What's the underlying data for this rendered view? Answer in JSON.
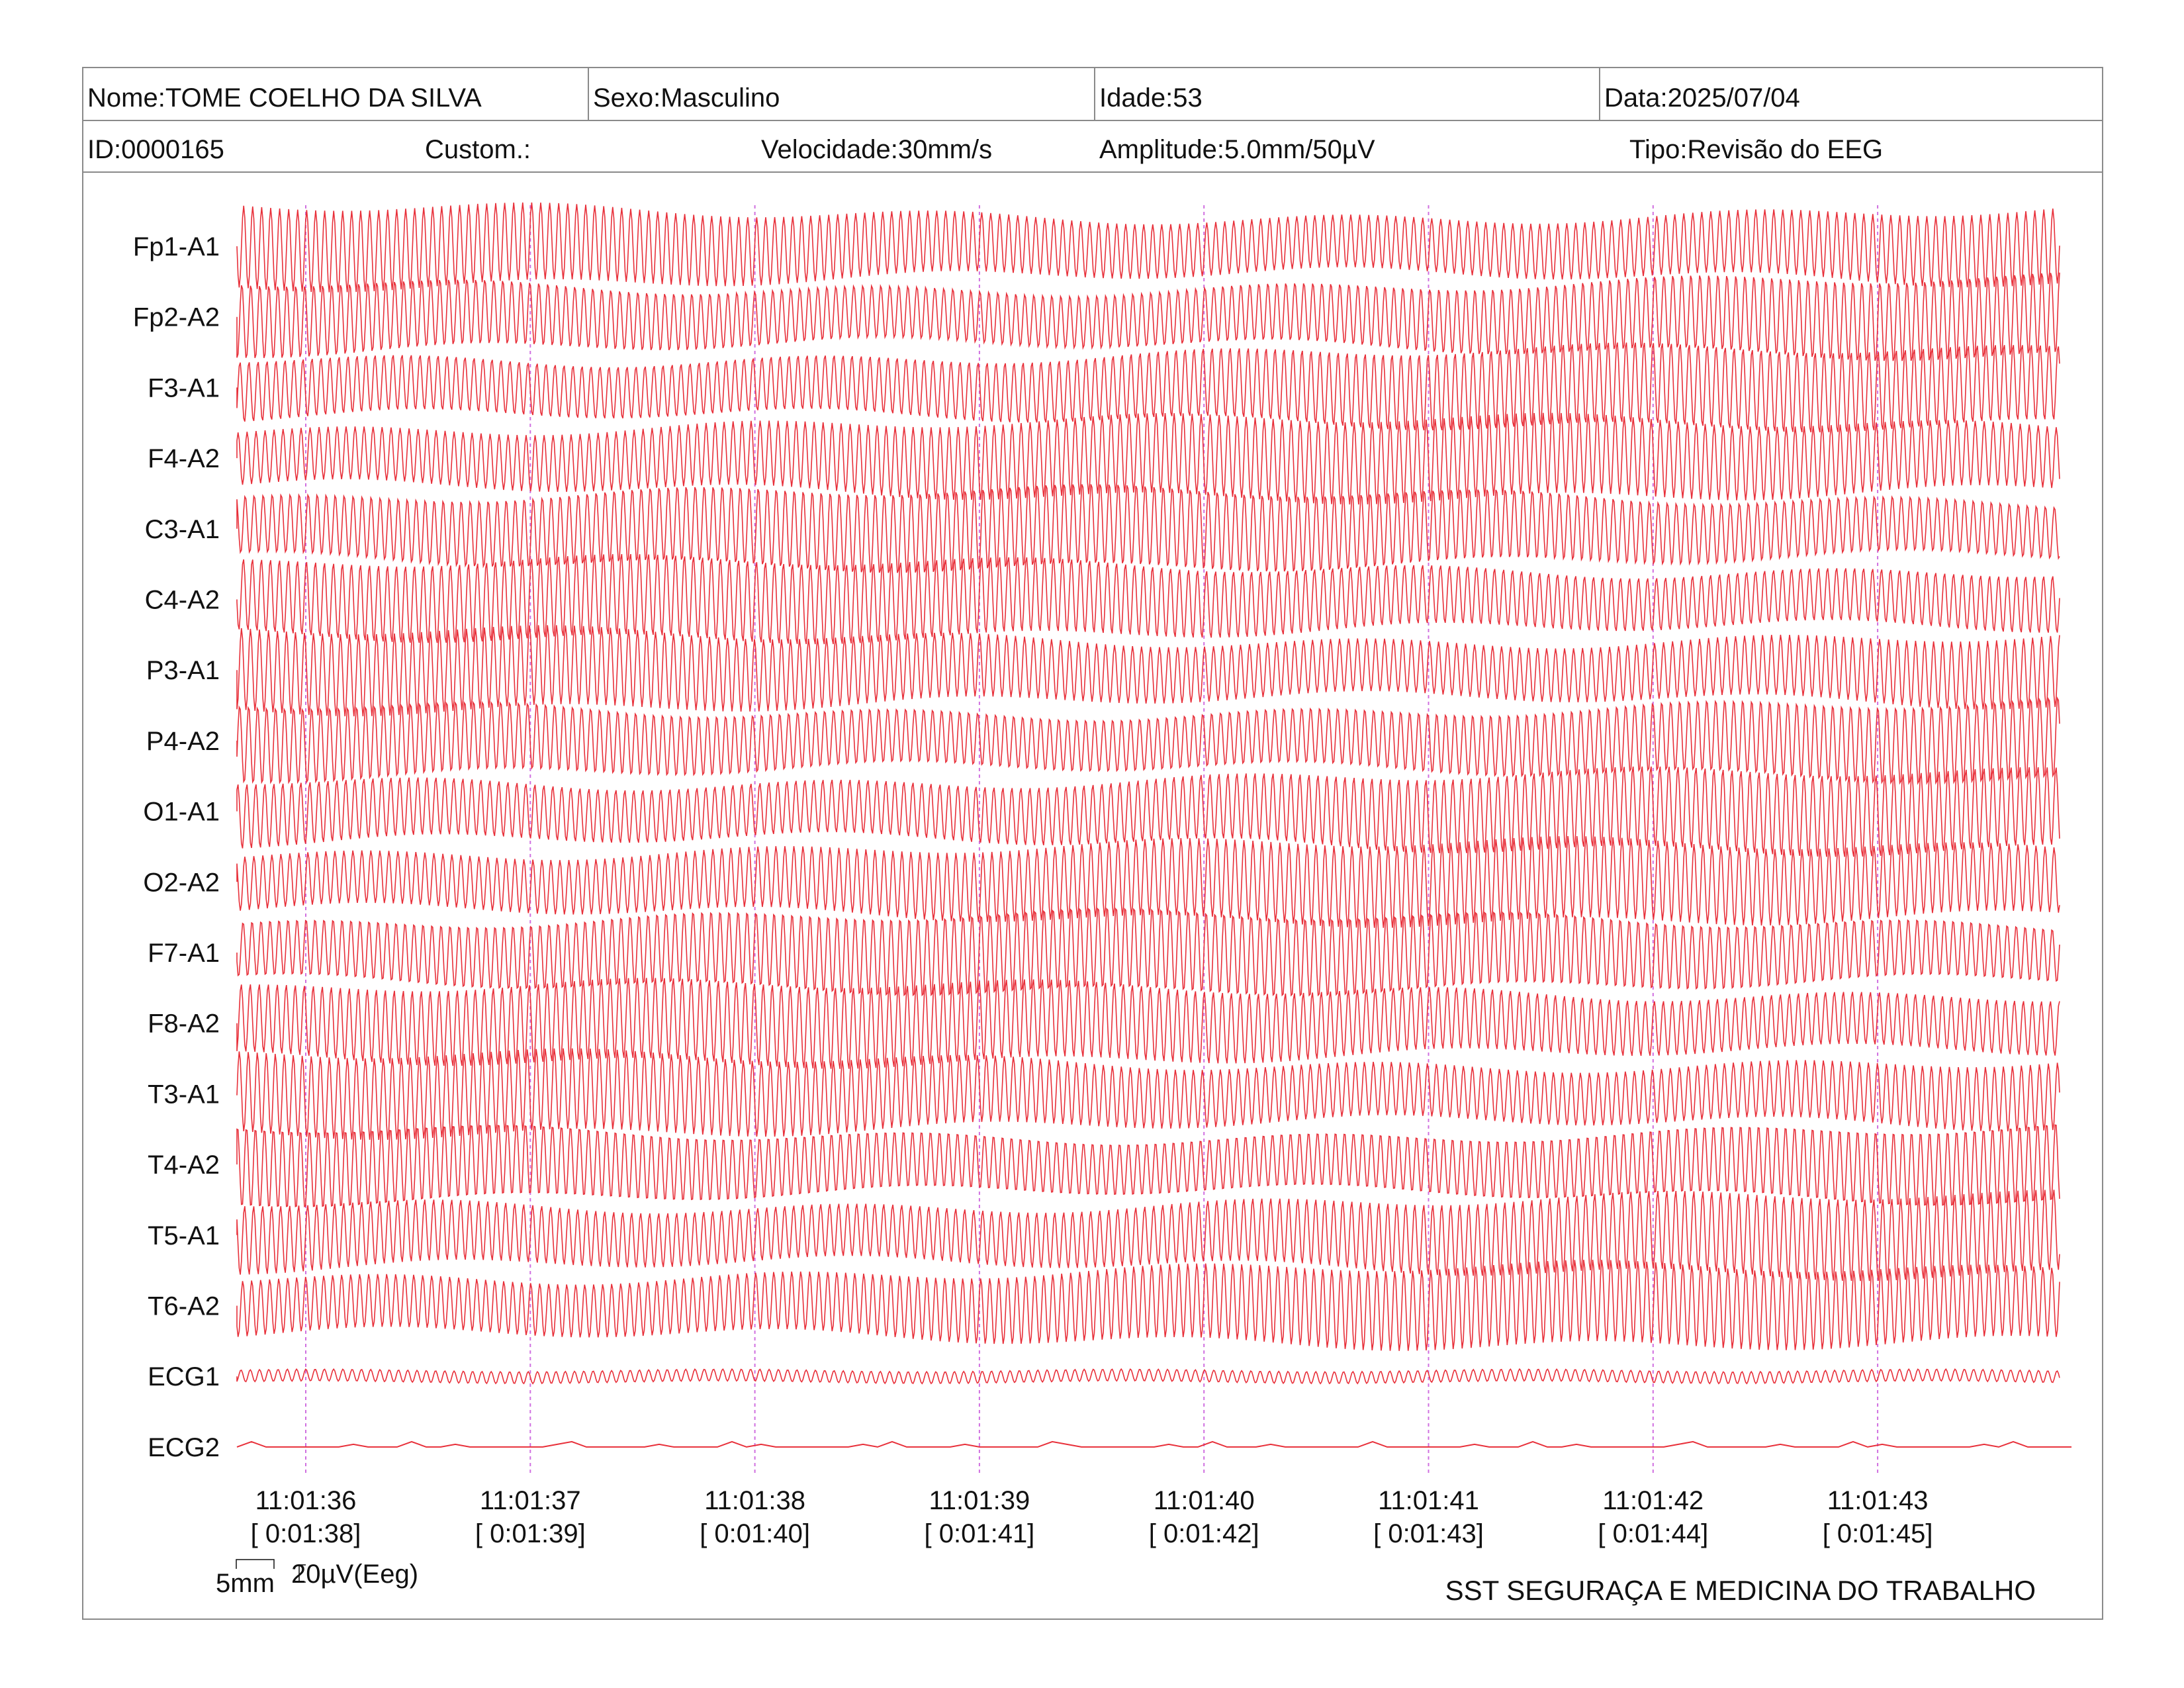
{
  "header": {
    "name": "Nome:TOME COELHO DA SILVA",
    "sex": "Sexo:Masculino",
    "age": "Idade:53",
    "date": "Data:2025/07/04",
    "id": "ID:0000165",
    "custom": "Custom.:",
    "speed": "Velocidade:30mm/s",
    "amplitude": "Amplitude:5.0mm/50µV",
    "type": "Tipo:Revisão do EEG"
  },
  "channels": [
    "Fp1-A1",
    "Fp2-A2",
    "F3-A1",
    "F4-A2",
    "C3-A1",
    "C4-A2",
    "P3-A1",
    "P4-A2",
    "O1-A1",
    "O2-A2",
    "F7-A1",
    "F8-A2",
    "T3-A1",
    "T4-A2",
    "T5-A1",
    "T6-A2",
    "ECG1",
    "ECG2"
  ],
  "time_markers": [
    {
      "clock": "11:01:36",
      "elapsed": "[ 0:01:38]"
    },
    {
      "clock": "11:01:37",
      "elapsed": "[ 0:01:39]"
    },
    {
      "clock": "11:01:38",
      "elapsed": "[ 0:01:40]"
    },
    {
      "clock": "11:01:39",
      "elapsed": "[ 0:01:41]"
    },
    {
      "clock": "11:01:40",
      "elapsed": "[ 0:01:42]"
    },
    {
      "clock": "11:01:41",
      "elapsed": "[ 0:01:43]"
    },
    {
      "clock": "11:01:42",
      "elapsed": "[ 0:01:44]"
    },
    {
      "clock": "11:01:43",
      "elapsed": "[ 0:01:45]"
    }
  ],
  "scale": {
    "time": "5mm",
    "amplitude": "20µV(Eeg)"
  },
  "footer": {
    "organization": "SST SEGURAÇA E MEDICINA DO TRABALHO"
  },
  "colors": {
    "trace": "#e8303a",
    "marker": "#d070e0",
    "border": "#8a8a8a"
  }
}
